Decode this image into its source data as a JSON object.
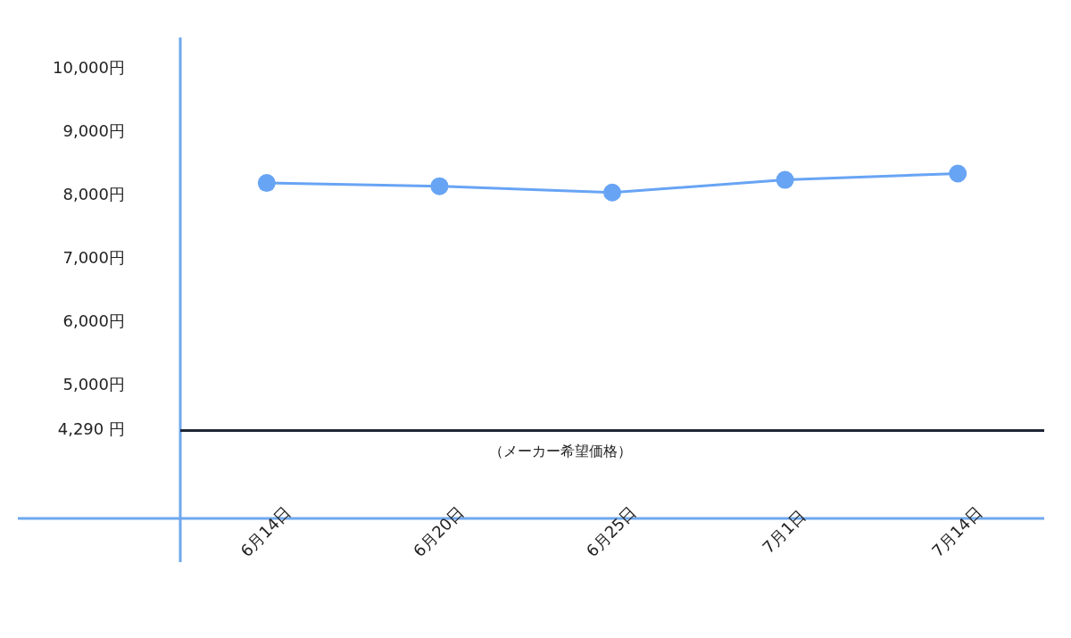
{
  "chart_data": {
    "type": "line",
    "categories": [
      "6月14日",
      "6月20日",
      "6月25日",
      "7月1日",
      "7月14日"
    ],
    "series": [
      {
        "color": "#68a4f4",
        "values": [
          8200,
          8150,
          8050,
          8250,
          8350
        ]
      }
    ],
    "ylim": [
      2900,
      10500
    ],
    "yticks": [
      {
        "value": 10000,
        "label": "10,000円"
      },
      {
        "value": 9000,
        "label": "9,000円"
      },
      {
        "value": 8000,
        "label": "8,000円"
      },
      {
        "value": 7000,
        "label": "7,000円"
      },
      {
        "value": 6000,
        "label": "6,000円"
      },
      {
        "value": 5000,
        "label": "5,000円"
      },
      {
        "value": 4290,
        "label": "4,290 円"
      }
    ],
    "ref_lines": [
      {
        "axis": "y",
        "value": 4290,
        "label": "（メーカー希望価格）",
        "color": "#1e2636"
      }
    ],
    "marker": "circle",
    "grid": false,
    "legend": false
  }
}
